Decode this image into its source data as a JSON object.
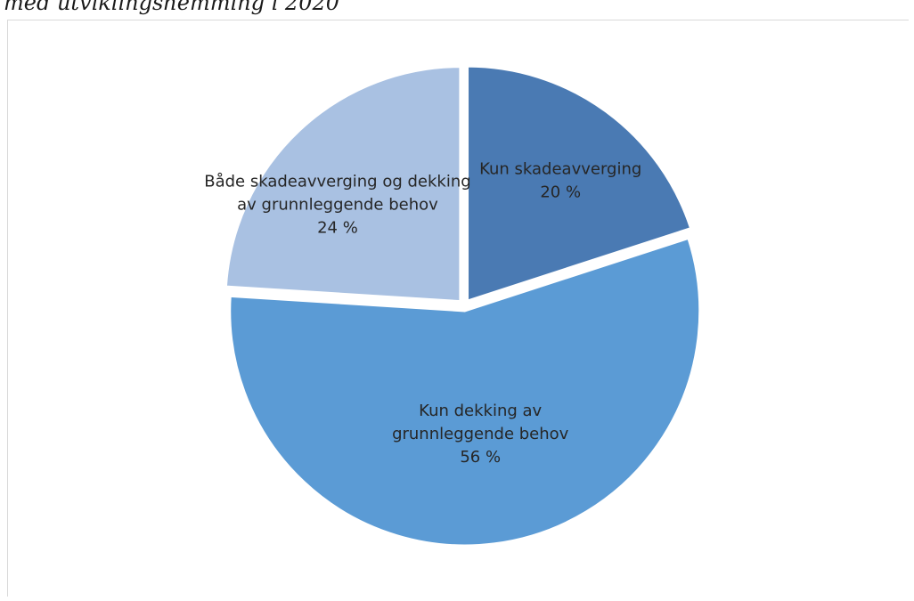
{
  "caption": "med utviklingshemming i 2020",
  "chart_data": {
    "type": "pie",
    "title": "",
    "start_slice": "Kun skadeavverging",
    "direction": "clockwise",
    "slices": [
      {
        "name": "Kun skadeavverging",
        "value": 20,
        "value_label": "20 %",
        "color": "#4a7ab3",
        "label_lines": [
          "Kun skadeavverging",
          "20 %"
        ]
      },
      {
        "name": "Kun dekking av grunnleggende behov",
        "value": 56,
        "value_label": "56 %",
        "color": "#5b9bd5",
        "label_lines": [
          "Kun dekking av",
          "grunnleggende behov",
          "56 %"
        ]
      },
      {
        "name": "Både skadeavverging og dekking av grunnleggende behov",
        "value": 24,
        "value_label": "24 %",
        "color": "#a9c1e2",
        "label_lines": [
          "Både skadeavverging og dekking",
          "av grunnleggende behov",
          "24 %"
        ]
      }
    ],
    "legend": "none",
    "data_labels": "on slices"
  }
}
